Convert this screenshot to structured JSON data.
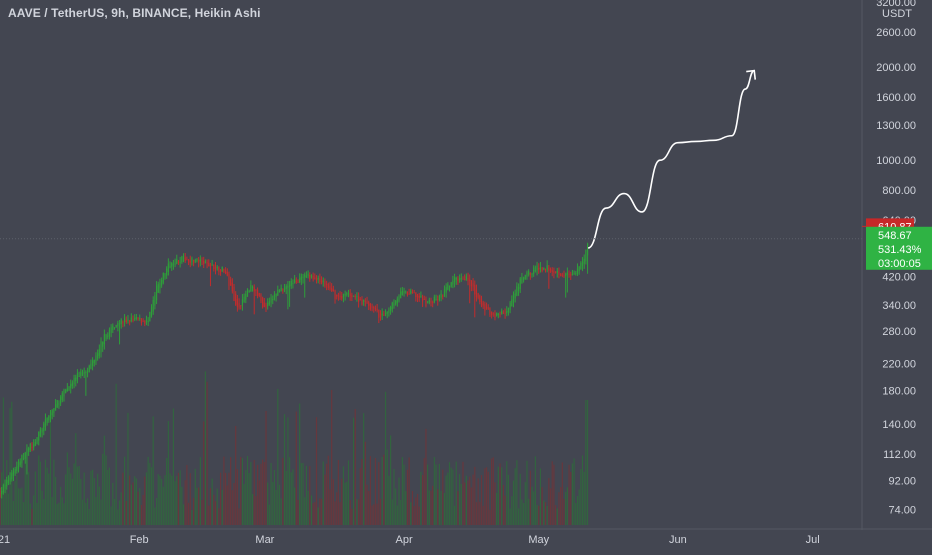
{
  "header": {
    "symbol_title": "AAVE / TetherUS, 9h, BINANCE, Heikin Ashi"
  },
  "price_axis": {
    "unit": "USDT",
    "top_label": "3200.00",
    "ticks": [
      "2600.00",
      "2000.00",
      "1600.00",
      "1300.00",
      "1000.00",
      "800.00",
      "640.00",
      "420.00",
      "340.00",
      "280.00",
      "220.00",
      "180.00",
      "140.00",
      "112.00",
      "92.00",
      "74.00"
    ],
    "last_price_label": "610.87",
    "current_price_label": "548.67",
    "change_label": "531.43%",
    "countdown_label": "03:00:05"
  },
  "time_axis": {
    "labels": [
      "21",
      "Feb",
      "Mar",
      "Apr",
      "May",
      "Jun",
      "Jul"
    ]
  },
  "colors": {
    "background": "#434651",
    "up": "#26a69a",
    "up_candle": "#2e9e3a",
    "down": "#c22c2c",
    "price_tag_red": "#c62828",
    "price_tag_green": "#2fb344",
    "axis_text": "#d1d4dc",
    "drawing": "#ffffff"
  },
  "chart_data": {
    "type": "candlestick",
    "title": "AAVE / TetherUS, 9h, BINANCE, Heikin Ashi",
    "y_scale": "log",
    "ylim": [
      66,
      3300
    ],
    "x_range": [
      "2021-01-01",
      "2021-07-12"
    ],
    "close_path": [
      [
        "2021-01-01",
        84
      ],
      [
        "2021-01-05",
        105
      ],
      [
        "2021-01-09",
        125
      ],
      [
        "2021-01-12",
        150
      ],
      [
        "2021-01-15",
        175
      ],
      [
        "2021-01-18",
        200
      ],
      [
        "2021-01-21",
        215
      ],
      [
        "2021-01-24",
        265
      ],
      [
        "2021-01-27",
        300
      ],
      [
        "2021-01-31",
        305
      ],
      [
        "2021-02-03",
        300
      ],
      [
        "2021-02-05",
        390
      ],
      [
        "2021-02-08",
        470
      ],
      [
        "2021-02-11",
        480
      ],
      [
        "2021-02-14",
        470
      ],
      [
        "2021-02-17",
        455
      ],
      [
        "2021-02-20",
        440
      ],
      [
        "2021-02-23",
        330
      ],
      [
        "2021-02-26",
        400
      ],
      [
        "2021-03-01",
        330
      ],
      [
        "2021-03-04",
        380
      ],
      [
        "2021-03-08",
        410
      ],
      [
        "2021-03-11",
        420
      ],
      [
        "2021-03-14",
        400
      ],
      [
        "2021-03-17",
        360
      ],
      [
        "2021-03-20",
        370
      ],
      [
        "2021-03-24",
        340
      ],
      [
        "2021-03-27",
        310
      ],
      [
        "2021-03-31",
        370
      ],
      [
        "2021-04-03",
        370
      ],
      [
        "2021-04-06",
        345
      ],
      [
        "2021-04-09",
        360
      ],
      [
        "2021-04-12",
        410
      ],
      [
        "2021-04-15",
        420
      ],
      [
        "2021-04-18",
        340
      ],
      [
        "2021-04-21",
        315
      ],
      [
        "2021-04-24",
        325
      ],
      [
        "2021-04-27",
        410
      ],
      [
        "2021-04-30",
        445
      ],
      [
        "2021-05-03",
        450
      ],
      [
        "2021-05-06",
        430
      ],
      [
        "2021-05-09",
        420
      ],
      [
        "2021-05-11",
        480
      ],
      [
        "2021-05-12",
        548.67
      ]
    ],
    "last_price": 610.87,
    "current_price": 548.67,
    "change_percent": "531.43%",
    "drawn_projection_path": [
      [
        "2021-05-12",
        520
      ],
      [
        "2021-05-16",
        700
      ],
      [
        "2021-05-20",
        780
      ],
      [
        "2021-05-24",
        680
      ],
      [
        "2021-05-28",
        1000
      ],
      [
        "2021-06-01",
        1140
      ],
      [
        "2021-06-05",
        1150
      ],
      [
        "2021-06-09",
        1160
      ],
      [
        "2021-06-13",
        1200
      ],
      [
        "2021-06-16",
        1700
      ],
      [
        "2021-06-18",
        1950
      ]
    ]
  }
}
